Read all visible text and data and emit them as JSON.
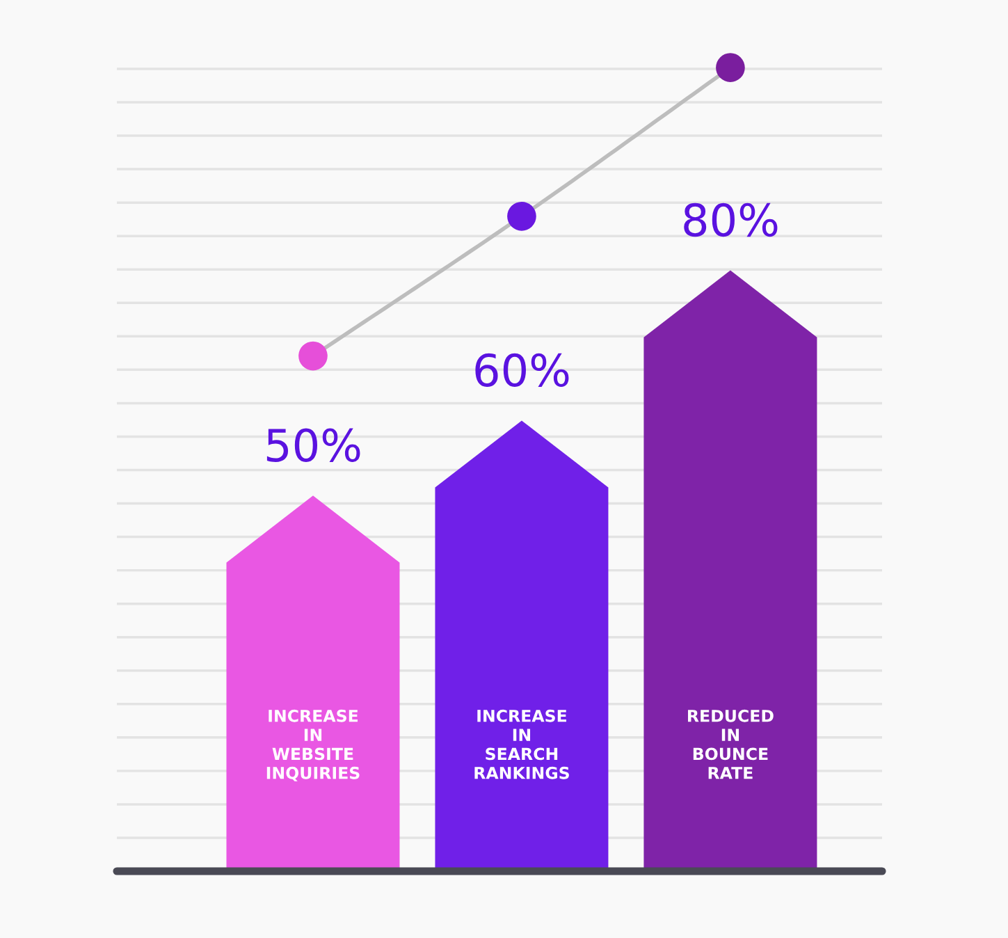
{
  "chart_data": {
    "type": "bar",
    "grid": "y",
    "categories": [
      "INCREASE IN WEBSITE INQUIRIES",
      "INCREASE IN SEARCH RANKINGS",
      "REDUCED IN BOUNCE RATE"
    ],
    "series": [
      {
        "colors": [
          "#e957e3",
          "#7020e8",
          "#7f23a8"
        ],
        "values": [
          50,
          60,
          80
        ],
        "value_labels": [
          "50%",
          "60%",
          "80%"
        ]
      },
      {
        "type": "line",
        "color": "#bdbdbd",
        "marker": "circle",
        "colors": [
          "#e64fd9",
          "#6a18e0",
          "#7a1e9e"
        ],
        "values": [
          68.6,
          87.2,
          107
        ]
      }
    ]
  }
}
